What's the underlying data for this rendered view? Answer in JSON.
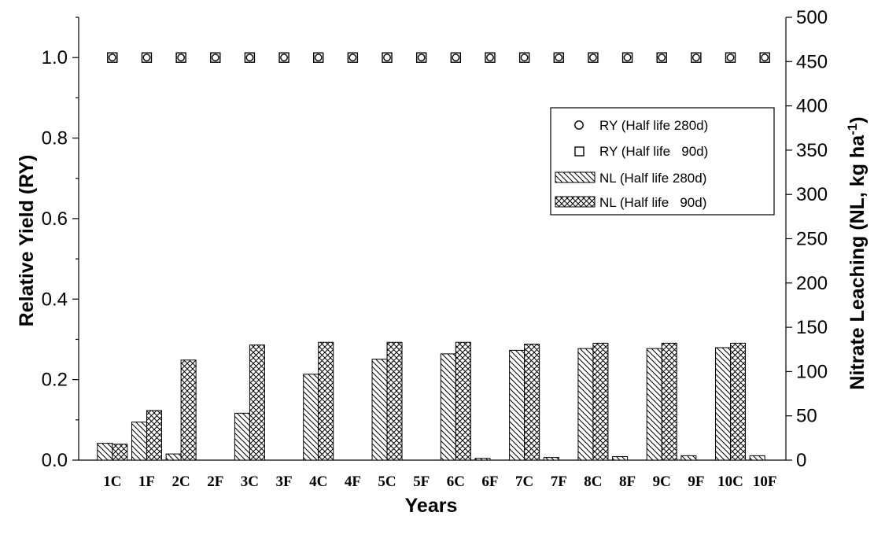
{
  "chart_data": {
    "type": "bar",
    "xlabel": "Years",
    "ylabel_left": "Relative Yield (RY)",
    "ylabel_right": "Nitrate Leaching (NL, kg ha",
    "ylabel_right_sup": "-1",
    "ylabel_right_end": ")",
    "ylim_left": [
      0.0,
      1.1
    ],
    "ylim_right": [
      0,
      500
    ],
    "yticks_left": [
      "0.0",
      "0.2",
      "0.4",
      "0.6",
      "0.8",
      "1.0"
    ],
    "yticks_right": [
      "0",
      "50",
      "100",
      "150",
      "200",
      "250",
      "300",
      "350",
      "400",
      "450",
      "500"
    ],
    "categories": [
      "1C",
      "1F",
      "2C",
      "2F",
      "3C",
      "3F",
      "4C",
      "4F",
      "5C",
      "5F",
      "6C",
      "6F",
      "7C",
      "7F",
      "8C",
      "8F",
      "9C",
      "9F",
      "10C",
      "10F"
    ],
    "series": [
      {
        "name": "RY (Half life 280d)",
        "kind": "marker",
        "marker": "circle",
        "axis": "left",
        "values": [
          1,
          1,
          1,
          1,
          1,
          1,
          1,
          1,
          1,
          1,
          1,
          1,
          1,
          1,
          1,
          1,
          1,
          1,
          1,
          1
        ]
      },
      {
        "name": "RY (Half life   90d)",
        "kind": "marker",
        "marker": "square",
        "axis": "left",
        "values": [
          1,
          1,
          1,
          1,
          1,
          1,
          1,
          1,
          1,
          1,
          1,
          1,
          1,
          1,
          1,
          1,
          1,
          1,
          1,
          1
        ]
      },
      {
        "name": "NL (Half life 280d)",
        "kind": "bar",
        "pattern": "diagonal",
        "axis": "right",
        "values": [
          19,
          43,
          7,
          0,
          53,
          0,
          97,
          0,
          114,
          0,
          120,
          2,
          124,
          3,
          126,
          4,
          126,
          5,
          127,
          5
        ]
      },
      {
        "name": "NL (Half life   90d)",
        "kind": "bar",
        "pattern": "crosshatch",
        "axis": "right",
        "values": [
          18,
          56,
          113,
          0,
          130,
          0,
          133,
          0,
          133,
          0,
          133,
          0,
          131,
          0,
          132,
          0,
          132,
          0,
          132,
          0
        ]
      }
    ],
    "legend": "upper-right"
  }
}
